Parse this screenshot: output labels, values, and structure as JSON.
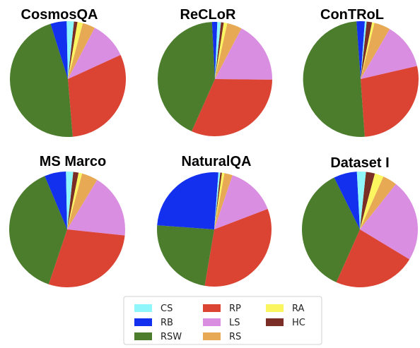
{
  "colors": {
    "CS": "#8ff6fb",
    "RB": "#1230ee",
    "RSW": "#4b7d2d",
    "RP": "#db4333",
    "LS": "#d98ee1",
    "RS": "#e8a954",
    "RA": "#fbf660",
    "HC": "#7b2e26"
  },
  "legend": {
    "items": [
      {
        "key": "CS",
        "label": "CS"
      },
      {
        "key": "RB",
        "label": "RB"
      },
      {
        "key": "RSW",
        "label": "RSW"
      },
      {
        "key": "RP",
        "label": "RP"
      },
      {
        "key": "LS",
        "label": "LS"
      },
      {
        "key": "RS",
        "label": "RS"
      },
      {
        "key": "RA",
        "label": "RA"
      },
      {
        "key": "HC",
        "label": "HC"
      }
    ]
  },
  "chart_data": [
    {
      "type": "pie",
      "title": "CosmosQA",
      "slices": [
        {
          "label": "HC",
          "value": 1.0
        },
        {
          "label": "RA",
          "value": 1.5
        },
        {
          "label": "RS",
          "value": 3.5
        },
        {
          "label": "LS",
          "value": 10.5
        },
        {
          "label": "RP",
          "value": 30.5
        },
        {
          "label": "RSW",
          "value": 46.5
        },
        {
          "label": "RB",
          "value": 4.5
        },
        {
          "label": "CS",
          "value": 2.0
        }
      ]
    },
    {
      "type": "pie",
      "title": "ReCLoR",
      "slices": [
        {
          "label": "HC",
          "value": 0.8
        },
        {
          "label": "RA",
          "value": 1.0
        },
        {
          "label": "RS",
          "value": 4.2
        },
        {
          "label": "LS",
          "value": 17.5
        },
        {
          "label": "RP",
          "value": 31.5
        },
        {
          "label": "RSW",
          "value": 42.5
        },
        {
          "label": "RB",
          "value": 1.5
        },
        {
          "label": "CS",
          "value": 1.0
        }
      ]
    },
    {
      "type": "pie",
      "title": "ConTRoL",
      "slices": [
        {
          "label": "HC",
          "value": 1.5
        },
        {
          "label": "RA",
          "value": 0.7
        },
        {
          "label": "RS",
          "value": 4.5
        },
        {
          "label": "LS",
          "value": 13.0
        },
        {
          "label": "RP",
          "value": 27.5
        },
        {
          "label": "RSW",
          "value": 50.0
        },
        {
          "label": "RB",
          "value": 2.3
        },
        {
          "label": "CS",
          "value": 0.5
        }
      ]
    },
    {
      "type": "pie",
      "title": "MS Marco",
      "slices": [
        {
          "label": "HC",
          "value": 1.5
        },
        {
          "label": "RA",
          "value": 1.0
        },
        {
          "label": "RS",
          "value": 4.5
        },
        {
          "label": "LS",
          "value": 18.0
        },
        {
          "label": "RP",
          "value": 28.5
        },
        {
          "label": "RSW",
          "value": 38.5
        },
        {
          "label": "RB",
          "value": 6.0
        },
        {
          "label": "CS",
          "value": 2.0
        }
      ]
    },
    {
      "type": "pie",
      "title": "NaturalQA",
      "slices": [
        {
          "label": "HC",
          "value": 0.5
        },
        {
          "label": "RA",
          "value": 0.7
        },
        {
          "label": "RS",
          "value": 2.3
        },
        {
          "label": "LS",
          "value": 14.0
        },
        {
          "label": "RP",
          "value": 33.5
        },
        {
          "label": "RSW",
          "value": 23.5
        },
        {
          "label": "RB",
          "value": 25.0
        },
        {
          "label": "CS",
          "value": 0.5
        }
      ]
    },
    {
      "type": "pie",
      "title": "Dataset I",
      "slices": [
        {
          "label": "HC",
          "value": 2.5
        },
        {
          "label": "RA",
          "value": 2.5
        },
        {
          "label": "RS",
          "value": 4.0
        },
        {
          "label": "LS",
          "value": 23.0
        },
        {
          "label": "RP",
          "value": 23.0
        },
        {
          "label": "RSW",
          "value": 36.0
        },
        {
          "label": "RB",
          "value": 6.5
        },
        {
          "label": "CS",
          "value": 2.5
        }
      ]
    }
  ]
}
